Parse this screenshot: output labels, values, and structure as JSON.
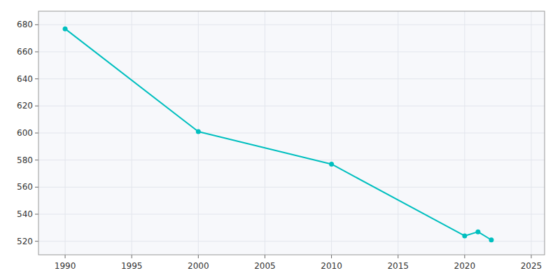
{
  "chart_data": {
    "type": "line",
    "x": [
      1990,
      2000,
      2010,
      2020,
      2021,
      2022
    ],
    "values": [
      677,
      601,
      577,
      524,
      527,
      521
    ],
    "color": "#00BFBF",
    "marker": "circle",
    "xlim": [
      1988,
      2026
    ],
    "ylim": [
      510,
      690
    ],
    "xticks": [
      1990,
      1995,
      2000,
      2005,
      2010,
      2015,
      2020,
      2025
    ],
    "yticks": [
      520,
      540,
      560,
      580,
      600,
      620,
      640,
      660,
      680
    ],
    "grid": true
  }
}
